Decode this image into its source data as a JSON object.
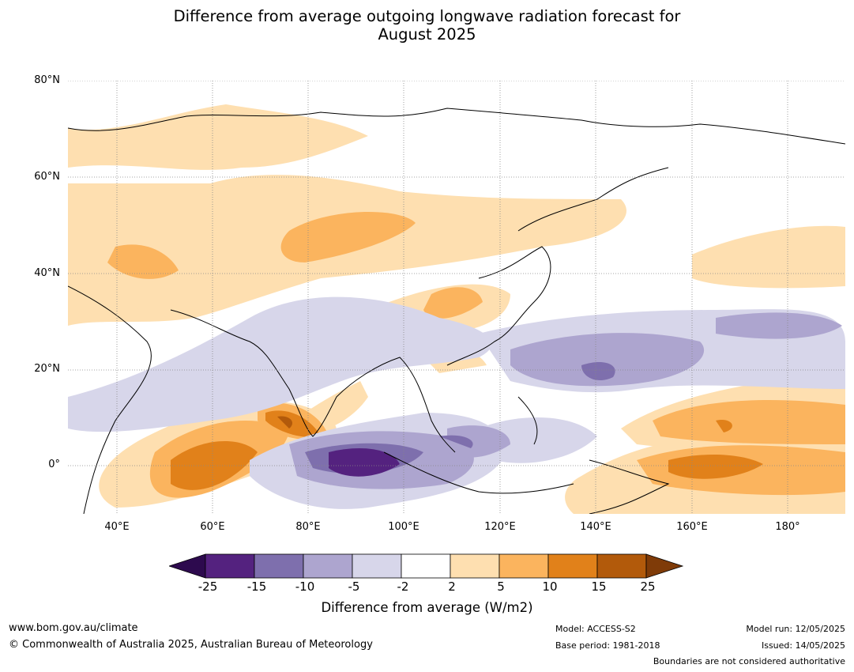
{
  "title_line1": "Difference from average outgoing longwave radiation forecast for",
  "title_line2": "August 2025",
  "lat_labels": [
    "80°N",
    "60°N",
    "40°N",
    "20°N",
    "0°"
  ],
  "lon_labels": [
    "40°E",
    "60°E",
    "80°E",
    "100°E",
    "120°E",
    "140°E",
    "160°E",
    "180°"
  ],
  "colorbar": {
    "label": "Difference from average (W/m2)",
    "ticks": [
      "-25",
      "-15",
      "-10",
      "-5",
      "-2",
      "2",
      "5",
      "10",
      "15",
      "25"
    ],
    "colors": [
      "#2d0a4e",
      "#54227f",
      "#7e6fad",
      "#ada5cf",
      "#d7d6ea",
      "#ffffff",
      "#fedfb0",
      "#fbb45e",
      "#e1811a",
      "#b25a0b",
      "#7f3b08"
    ]
  },
  "footer": {
    "website": "www.bom.gov.au/climate",
    "copyright": "© Commonwealth of Australia 2025, Australian Bureau of Meteorology",
    "model": "Model: ACCESS-S2",
    "base_period": "Base period: 1981-2018",
    "model_run": "Model run: 12/05/2025",
    "issued": "Issued: 14/05/2025",
    "disclaimer": "Boundaries are not considered authoritative"
  }
}
